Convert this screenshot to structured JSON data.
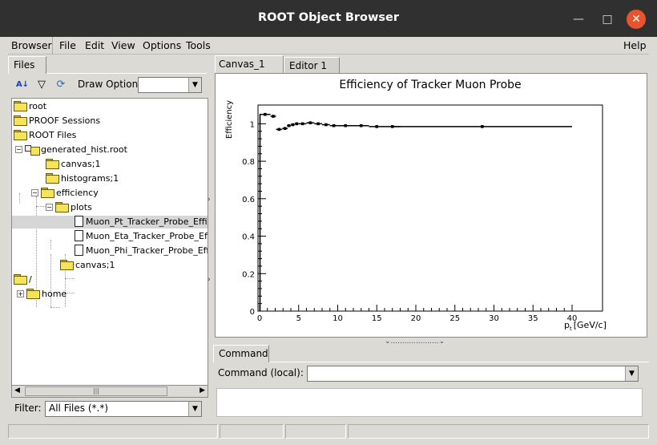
{
  "window": {
    "title": "ROOT Object Browser"
  },
  "menubar": {
    "browser": "Browser",
    "file": "File",
    "edit": "Edit",
    "view": "View",
    "options": "Options",
    "tools": "Tools",
    "help": "Help"
  },
  "left": {
    "tab": "Files",
    "draw_option_label": "Draw Option:",
    "draw_option_value": "",
    "filter_label": "Filter:",
    "filter_value": "All Files (*.*)",
    "tree": [
      {
        "label": "root"
      },
      {
        "label": "PROOF Sessions"
      },
      {
        "label": "ROOT Files"
      },
      {
        "label": "generated_hist.root"
      },
      {
        "label": "canvas;1"
      },
      {
        "label": "histograms;1"
      },
      {
        "label": "efficiency"
      },
      {
        "label": "plots"
      },
      {
        "label": "Muon_Pt_Tracker_Probe_Effici"
      },
      {
        "label": "Muon_Eta_Tracker_Probe_Effic"
      },
      {
        "label": "Muon_Phi_Tracker_Probe_Effic"
      },
      {
        "label": "canvas;1"
      },
      {
        "label": "/"
      },
      {
        "label": "home"
      }
    ]
  },
  "right": {
    "tabs": [
      {
        "label": "Canvas_1"
      },
      {
        "label": "Editor 1"
      }
    ],
    "command_tab": "Command",
    "command_label": "Command (local):"
  },
  "chart_data": {
    "type": "scatter",
    "title": "Efficiency of Tracker Muon Probe",
    "ylabel": "Efficiency",
    "xlabel_main": "p",
    "xlabel_sub": "t",
    "xlabel_unit": "[GeV/c]",
    "xlim": [
      0,
      40
    ],
    "ylim": [
      0,
      1.1
    ],
    "xticks": [
      0,
      5,
      10,
      15,
      20,
      25,
      30,
      35,
      40
    ],
    "yticks": [
      0,
      0.2,
      0.4,
      0.6,
      0.8,
      1
    ],
    "ytick_labels": [
      "0",
      "0.2",
      "0.4",
      "0.6",
      "0.8",
      "1"
    ],
    "points": [
      {
        "x": 0.7,
        "y": 1.05,
        "xerr": 0.7
      },
      {
        "x": 1.75,
        "y": 1.04,
        "xerr": 0.35
      },
      {
        "x": 2.5,
        "y": 0.97,
        "xerr": 0.4
      },
      {
        "x": 3.25,
        "y": 0.975,
        "xerr": 0.35
      },
      {
        "x": 3.75,
        "y": 0.99,
        "xerr": 0.25
      },
      {
        "x": 4.25,
        "y": 0.995,
        "xerr": 0.25
      },
      {
        "x": 4.75,
        "y": 1.0,
        "xerr": 0.25
      },
      {
        "x": 5.5,
        "y": 1.0,
        "xerr": 0.5
      },
      {
        "x": 6.5,
        "y": 1.005,
        "xerr": 0.5
      },
      {
        "x": 7.5,
        "y": 1.0,
        "xerr": 0.5
      },
      {
        "x": 8.5,
        "y": 0.995,
        "xerr": 0.5
      },
      {
        "x": 9.5,
        "y": 0.99,
        "xerr": 0.5
      },
      {
        "x": 11,
        "y": 0.99,
        "xerr": 1
      },
      {
        "x": 13,
        "y": 0.99,
        "xerr": 1
      },
      {
        "x": 15,
        "y": 0.985,
        "xerr": 1
      },
      {
        "x": 17,
        "y": 0.985,
        "xerr": 1
      },
      {
        "x": 28.5,
        "y": 0.985,
        "xerr": 11.5
      }
    ]
  }
}
